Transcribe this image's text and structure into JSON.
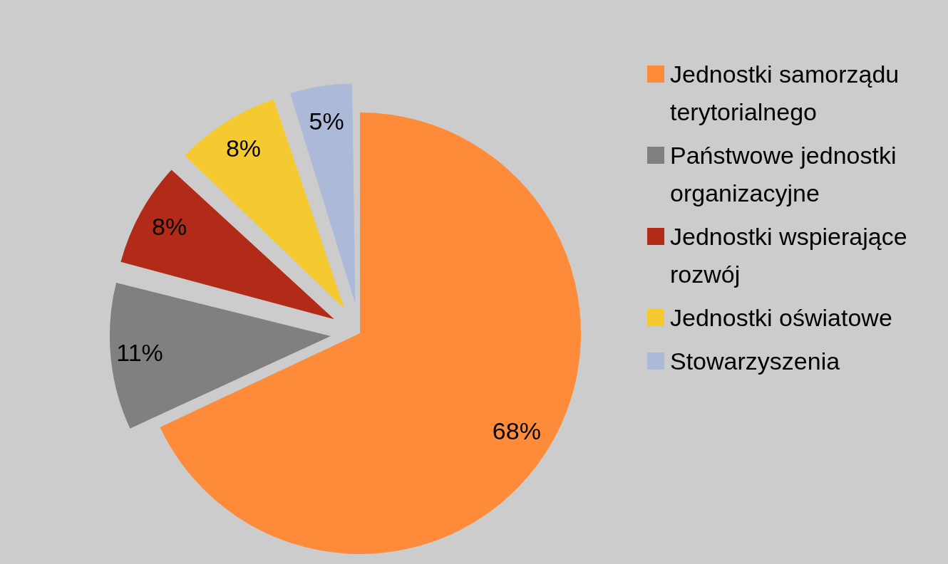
{
  "chart_data": {
    "type": "pie",
    "categories": [
      "Jednostki samorządu terytorialnego",
      "Państwowe jednostki organizacyjne",
      "Jednostki wspierające rozwój",
      "Jednostki oświatowe",
      "Stowarzyszenia"
    ],
    "values": [
      68,
      11,
      8,
      8,
      5
    ],
    "colors": [
      "#fd8b3a",
      "#808080",
      "#b22b18",
      "#f5ca30",
      "#adb9d8"
    ],
    "value_labels": [
      "68%",
      "11%",
      "8%",
      "8%",
      "5%"
    ],
    "legend": "right"
  }
}
